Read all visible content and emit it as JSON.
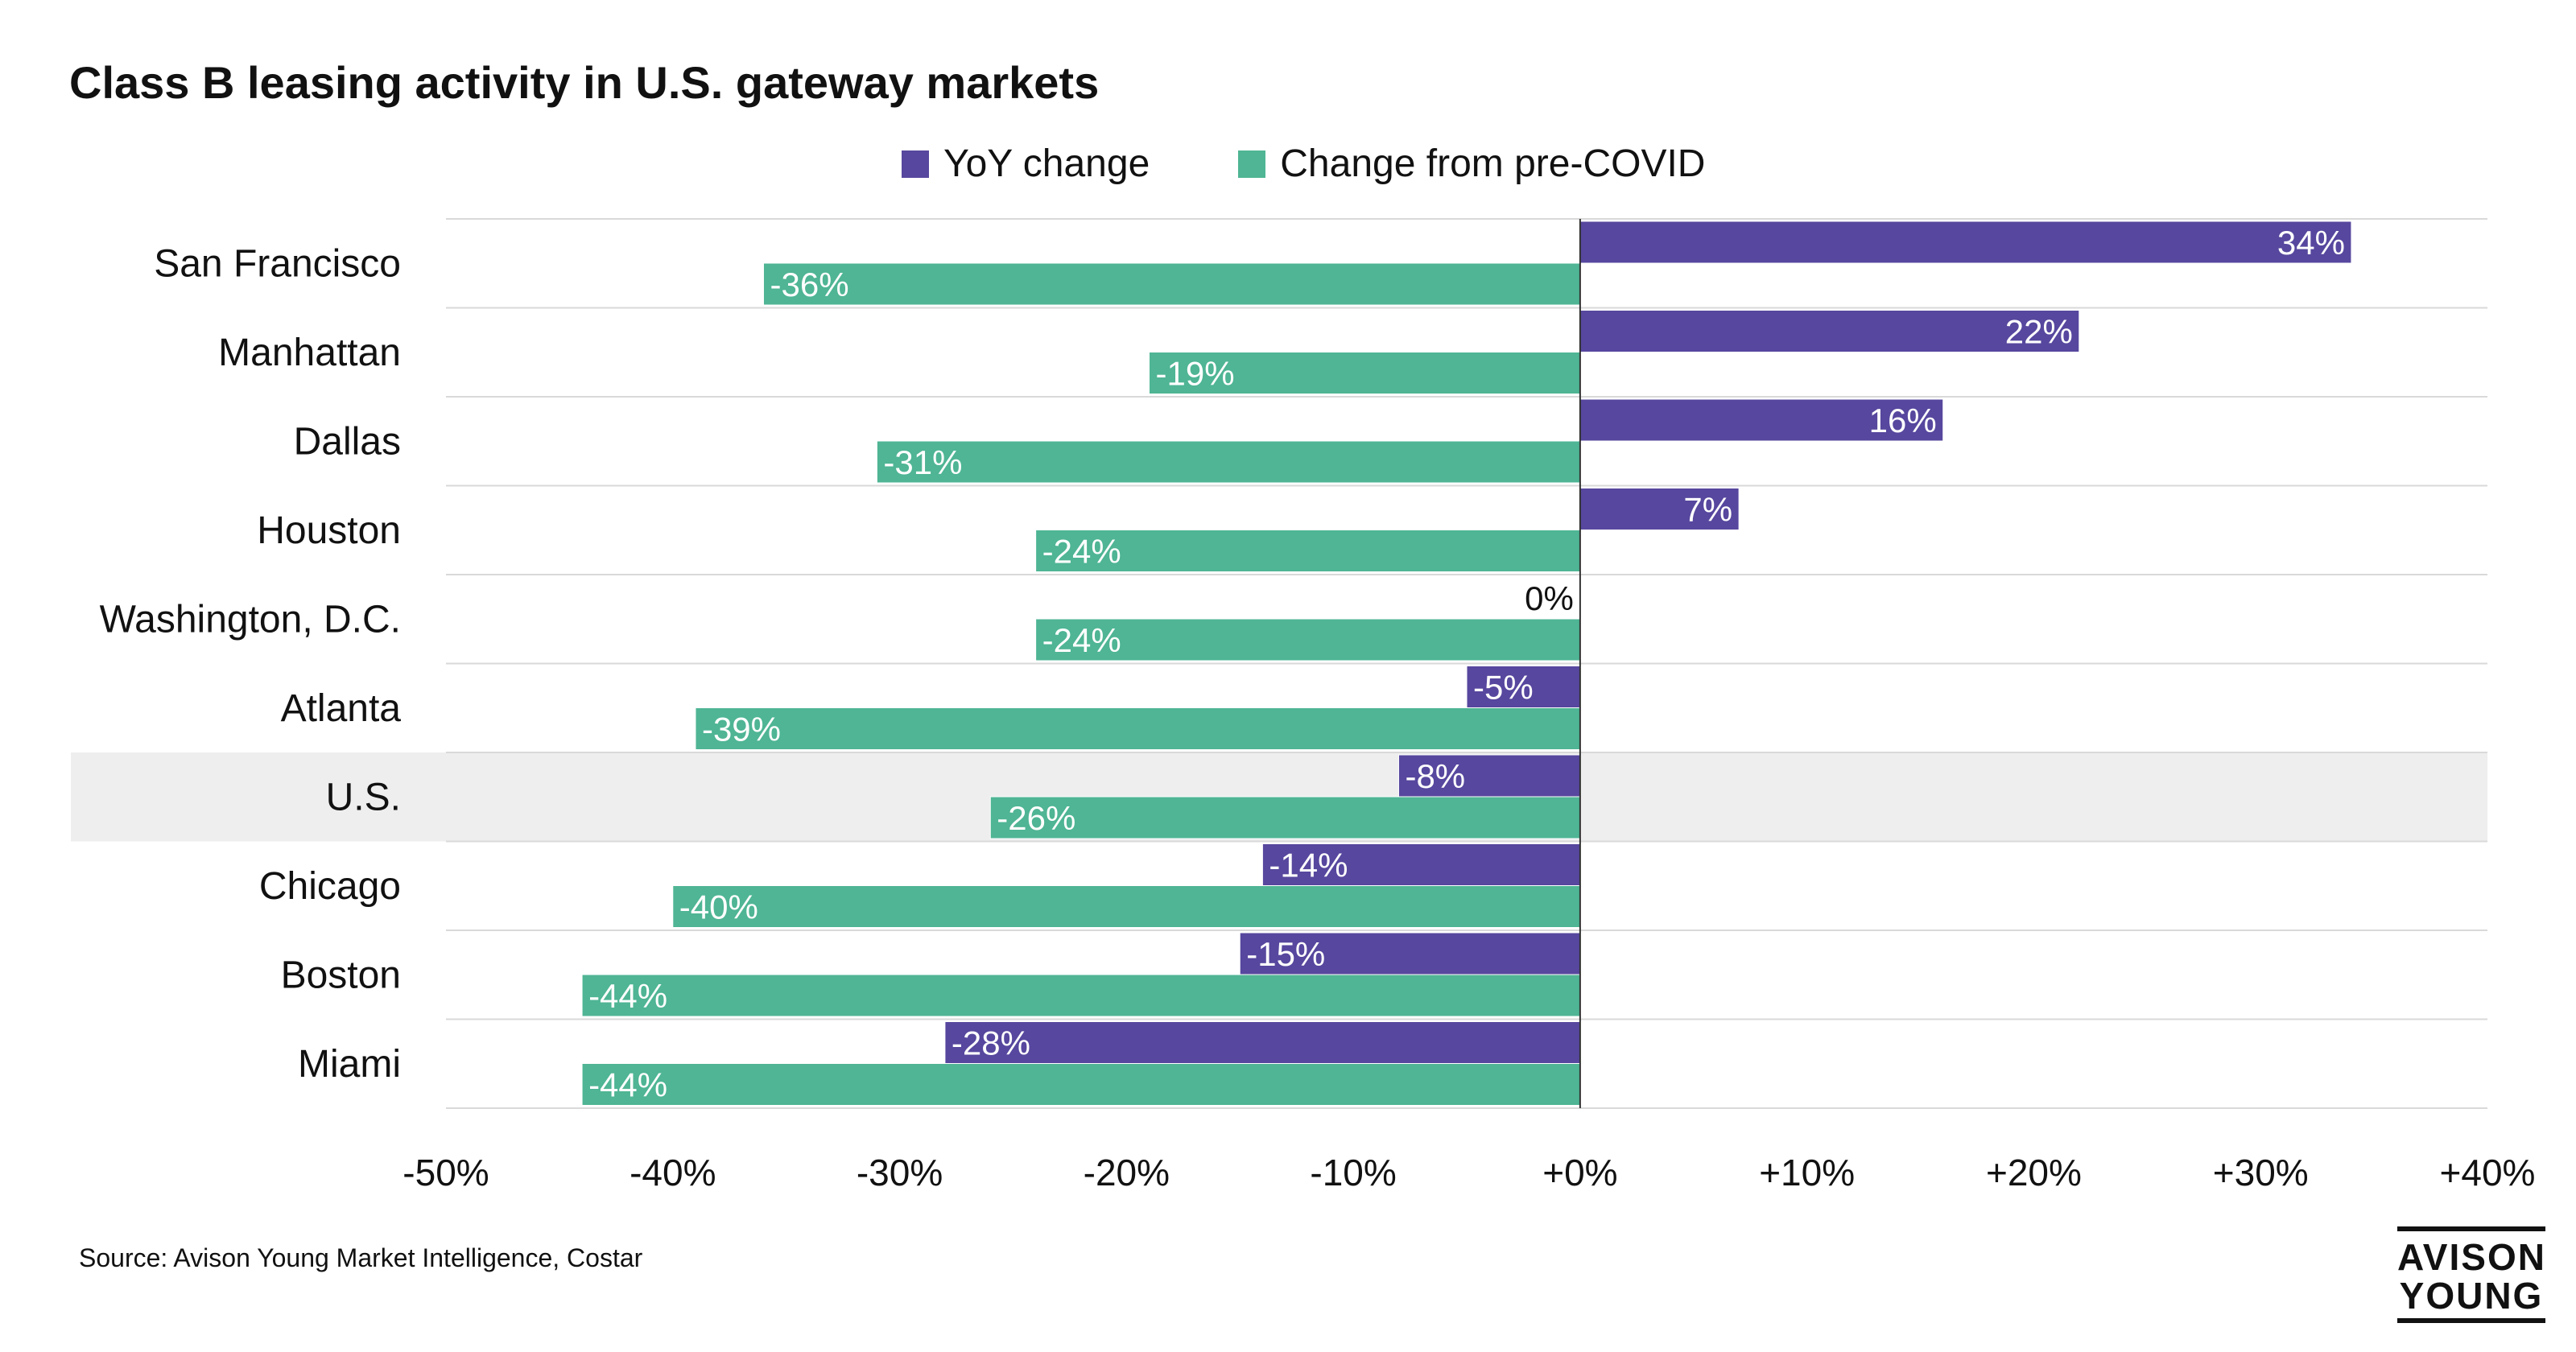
{
  "title": "Class B leasing activity in U.S. gateway markets",
  "legend": [
    {
      "label": "YoY change",
      "color": "#57479e"
    },
    {
      "label": "Change from pre-COVID",
      "color": "#4fb594"
    }
  ],
  "source": "Source: Avison Young Market Intelligence, Costar",
  "logo": {
    "line1": "AVISON",
    "line2": "YOUNG"
  },
  "colors": {
    "yoy": "#57479e",
    "precovid": "#4fb594",
    "highlight_row": "#eeeeee",
    "gridline": "#d9d9d9",
    "axis": "#333333"
  },
  "chart_data": {
    "type": "bar",
    "orientation": "horizontal",
    "title": "Class B leasing activity in U.S. gateway markets",
    "categories": [
      "San Francisco",
      "Manhattan",
      "Dallas",
      "Houston",
      "Washington, D.C.",
      "Atlanta",
      "U.S.",
      "Chicago",
      "Boston",
      "Miami"
    ],
    "highlighted_category": "U.S.",
    "series": [
      {
        "name": "YoY change",
        "values": [
          34,
          22,
          16,
          7,
          0,
          -5,
          -8,
          -14,
          -15,
          -28
        ],
        "labels": [
          "34%",
          "22%",
          "16%",
          "7%",
          "0%",
          "-5%",
          "-8%",
          "-14%",
          "-15%",
          "-28%"
        ]
      },
      {
        "name": "Change from pre-COVID",
        "values": [
          -36,
          -19,
          -31,
          -24,
          -24,
          -39,
          -26,
          -40,
          -44,
          -44
        ],
        "labels": [
          "-36%",
          "-19%",
          "-31%",
          "-24%",
          "-24%",
          "-39%",
          "-26%",
          "-40%",
          "-44%",
          "-44%"
        ]
      }
    ],
    "xlim": [
      -50,
      40
    ],
    "xticks": [
      -50,
      -40,
      -30,
      -20,
      -10,
      0,
      10,
      20,
      30,
      40
    ],
    "xtick_labels": [
      "-50%",
      "-40%",
      "-30%",
      "-20%",
      "-10%",
      "+0%",
      "+10%",
      "+20%",
      "+30%",
      "+40%"
    ],
    "xlabel": "",
    "ylabel": "",
    "legend_position": "top-center"
  }
}
